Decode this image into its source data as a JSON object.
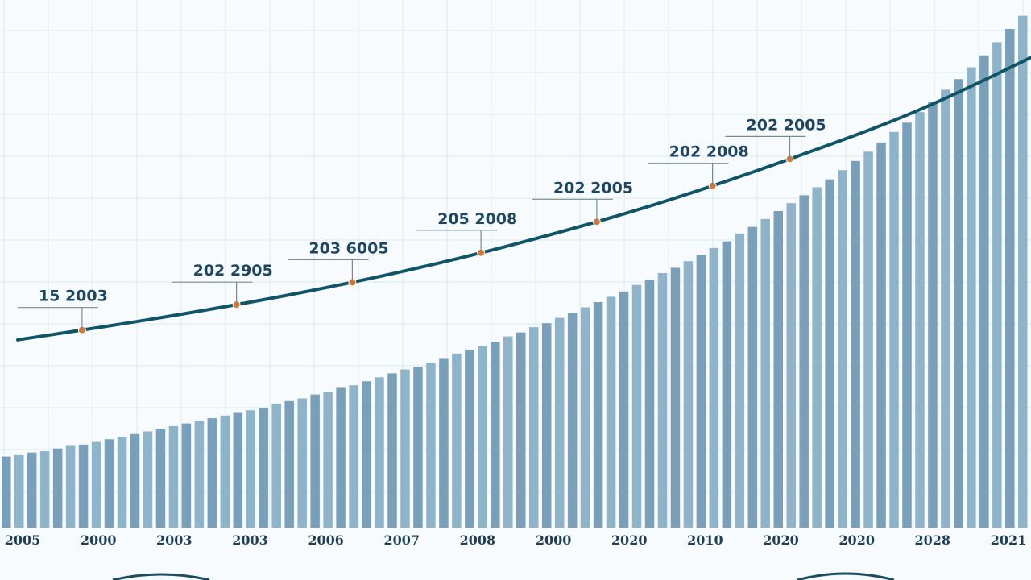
{
  "chart_data": {
    "type": "bar",
    "title": "",
    "xlabel": "",
    "ylabel": "",
    "x_tick_labels": [
      "2005",
      "2000",
      "2003",
      "2003",
      "2006",
      "2007",
      "2008",
      "2000",
      "2020",
      "2010",
      "2020",
      "2020",
      "2028",
      "2021"
    ],
    "bar_count": 80,
    "bar_values": [
      54,
      55,
      57,
      58,
      60,
      62,
      63,
      65,
      67,
      69,
      71,
      73,
      75,
      77,
      79,
      81,
      83,
      85,
      87,
      89,
      91,
      94,
      96,
      98,
      101,
      103,
      106,
      108,
      111,
      114,
      117,
      120,
      122,
      125,
      128,
      132,
      135,
      138,
      141,
      145,
      148,
      152,
      155,
      159,
      163,
      167,
      171,
      175,
      179,
      184,
      188,
      193,
      197,
      202,
      207,
      212,
      217,
      223,
      228,
      234,
      240,
      246,
      252,
      258,
      264,
      271,
      278,
      285,
      292,
      300,
      307,
      315,
      323,
      332,
      340,
      349,
      358,
      368,
      378,
      388
    ],
    "ylim": [
      0,
      400
    ],
    "line_series": {
      "points": [
        [
          0,
          60
        ],
        [
          10,
          75
        ],
        [
          20,
          92
        ],
        [
          30,
          112
        ],
        [
          40,
          136
        ],
        [
          50,
          164
        ],
        [
          60,
          197
        ],
        [
          70,
          234
        ],
        [
          80,
          280
        ],
        [
          85,
          305
        ]
      ],
      "markers": [
        5,
        17,
        26,
        36,
        45,
        54,
        60
      ]
    },
    "annotations": [
      {
        "text": "15 2003",
        "index": 5
      },
      {
        "text": "202 2905",
        "index": 17
      },
      {
        "text": "203 6005",
        "index": 26
      },
      {
        "text": "205 2008",
        "index": 36
      },
      {
        "text": "202 2005",
        "index": 45
      },
      {
        "text": "202 2008",
        "index": 54
      },
      {
        "text": "202 2005",
        "index": 60
      }
    ],
    "grid": true,
    "colors": {
      "bar": "#7a9fb8",
      "bar_light": "#8fb3c9",
      "line": "#0f5566",
      "marker": "#d2773c",
      "grid": "#dde9f0",
      "background": "#f7fbfd",
      "leader": "#7a8a94"
    }
  }
}
